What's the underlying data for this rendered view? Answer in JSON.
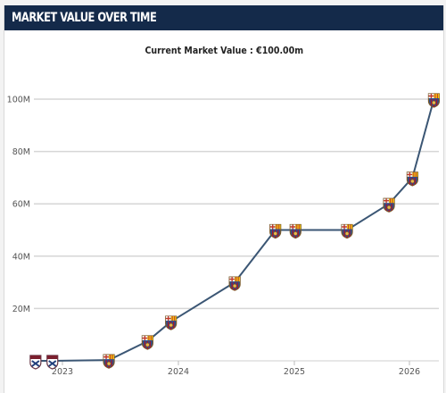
{
  "header": {
    "title": "MARKET VALUE OVER TIME"
  },
  "summary": {
    "current_value_text": "Current Market Value : €100.00m"
  },
  "chart_data": {
    "type": "line",
    "title": "",
    "xlabel": "",
    "ylabel": "",
    "x_ticks": [
      "2023",
      "2024",
      "2025",
      "2026"
    ],
    "y_ticks": [
      "20M",
      "40M",
      "60M",
      "80M",
      "100M"
    ],
    "ylim": [
      0,
      100
    ],
    "grid": true,
    "legend": "none",
    "line_color": "#3b5674",
    "series": [
      {
        "x": [
          "2022-11-15",
          "2023-01-05",
          "2023-06-25",
          "2023-10-20",
          "2023-12-30",
          "2024-07-10",
          "2024-11-10",
          "2025-01-10",
          "2025-06-15",
          "2025-10-20",
          "2025-12-30",
          "2026-03-05"
        ],
        "values": [
          0,
          0,
          0.3,
          7.5,
          15,
          30,
          50,
          50,
          50,
          60,
          70,
          100
        ],
        "markers": [
          "club-crest-icon-1",
          "club-crest-icon-1",
          "club-crest-icon-2",
          "club-crest-icon-2",
          "club-crest-icon-2",
          "club-crest-icon-2",
          "club-crest-icon-2",
          "club-crest-icon-2",
          "club-crest-icon-2",
          "club-crest-icon-2",
          "club-crest-icon-2",
          "club-crest-icon-2"
        ]
      }
    ]
  }
}
